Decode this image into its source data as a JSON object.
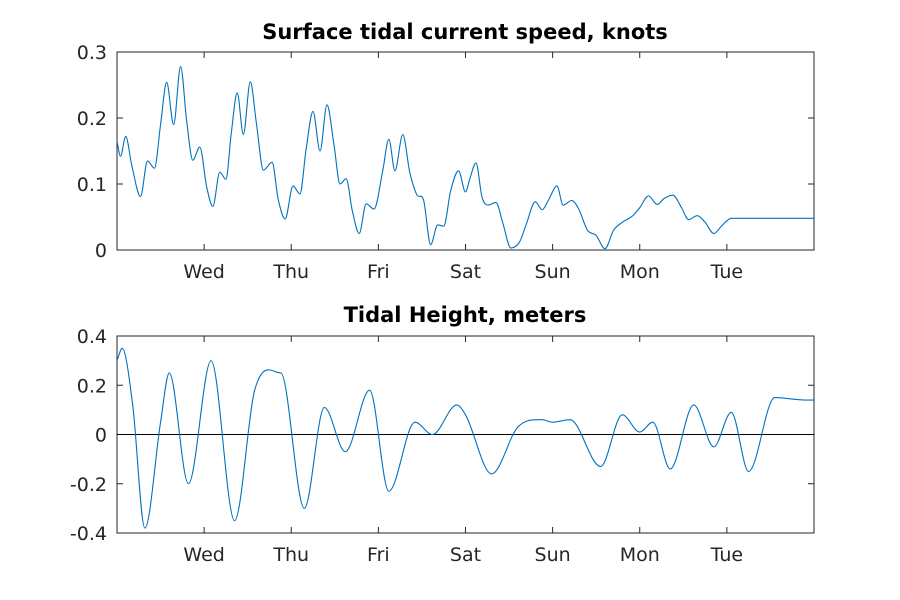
{
  "colors": {
    "series": "#0072bd",
    "axes": "#262626",
    "zero_line": "#000000"
  },
  "chart_data": [
    {
      "type": "line",
      "title": "Surface tidal current speed, knots",
      "xlabel": "",
      "ylabel": "",
      "x_unit": "days",
      "xlim": [
        0,
        8
      ],
      "ylim": [
        0,
        0.3
      ],
      "yticks": [
        "0",
        "0.1",
        "0.2",
        "0.3"
      ],
      "xticks": [
        "Wed",
        "Thu",
        "Fri",
        "Sat",
        "Sun",
        "Mon",
        "Tue"
      ],
      "xtick_positions": [
        1,
        2,
        3,
        4,
        5,
        6,
        7
      ],
      "grid": false,
      "zero_line": false,
      "series": [
        {
          "name": "",
          "x": [
            0,
            0.04,
            0.1,
            0.17,
            0.27,
            0.35,
            0.43,
            0.5,
            0.57,
            0.65,
            0.73,
            0.8,
            0.87,
            0.95,
            1.03,
            1.1,
            1.18,
            1.25,
            1.31,
            1.38,
            1.45,
            1.53,
            1.6,
            1.68,
            1.78,
            1.85,
            1.93,
            2.02,
            2.1,
            2.17,
            2.25,
            2.33,
            2.41,
            2.49,
            2.56,
            2.63,
            2.7,
            2.78,
            2.86,
            2.95,
            3.05,
            3.12,
            3.19,
            3.28,
            3.36,
            3.44,
            3.52,
            3.6,
            3.68,
            3.75,
            3.83,
            3.92,
            4.0,
            4.05,
            4.12,
            4.19,
            4.26,
            4.35,
            4.43,
            4.52,
            4.62,
            4.7,
            4.8,
            4.88,
            4.95,
            5.05,
            5.12,
            5.22,
            5.3,
            5.4,
            5.5,
            5.6,
            5.7,
            5.8,
            5.92,
            6.0,
            6.1,
            6.2,
            6.28,
            6.38,
            6.48,
            6.56,
            6.66,
            6.75,
            6.85,
            6.95,
            7.05,
            7.15,
            7.23,
            7.32,
            7.42,
            7.52,
            7.62,
            7.7,
            7.8,
            7.88,
            8.0
          ],
          "values": [
            0.165,
            0.142,
            0.172,
            0.128,
            0.081,
            0.135,
            0.124,
            0.19,
            0.254,
            0.19,
            0.278,
            0.195,
            0.136,
            0.156,
            0.095,
            0.066,
            0.118,
            0.107,
            0.175,
            0.238,
            0.175,
            0.255,
            0.192,
            0.121,
            0.133,
            0.077,
            0.047,
            0.097,
            0.085,
            0.152,
            0.21,
            0.15,
            0.22,
            0.16,
            0.1,
            0.108,
            0.06,
            0.025,
            0.07,
            0.062,
            0.12,
            0.168,
            0.12,
            0.175,
            0.118,
            0.084,
            0.075,
            0.008,
            0.038,
            0.036,
            0.09,
            0.12,
            0.088,
            0.108,
            0.132,
            0.08,
            0.068,
            0.072,
            0.04,
            0.003,
            0.012,
            0.04,
            0.073,
            0.061,
            0.075,
            0.097,
            0.068,
            0.075,
            0.062,
            0.03,
            0.022,
            0.002,
            0.03,
            0.042,
            0.052,
            0.064,
            0.082,
            0.069,
            0.078,
            0.083,
            0.064,
            0.046,
            0.052,
            0.042,
            0.025,
            0.038,
            0.048,
            0.048,
            0.048,
            0.048,
            0.048,
            0.048,
            0.048,
            0.048,
            0.048,
            0.048,
            0.048
          ]
        }
      ]
    },
    {
      "type": "line",
      "title": "Tidal Height, meters",
      "xlabel": "",
      "ylabel": "",
      "x_unit": "days",
      "xlim": [
        0,
        8
      ],
      "ylim": [
        -0.4,
        0.4
      ],
      "yticks": [
        "-0.4",
        "-0.2",
        "0",
        "0.2",
        "0.4"
      ],
      "xticks": [
        "Wed",
        "Thu",
        "Fri",
        "Sat",
        "Sun",
        "Mon",
        "Tue"
      ],
      "xtick_positions": [
        1,
        2,
        3,
        4,
        5,
        6,
        7
      ],
      "grid": false,
      "zero_line": true,
      "series": [
        {
          "name": "",
          "x": [
            0,
            0.06,
            0.18,
            0.32,
            0.5,
            0.6,
            0.82,
            1.08,
            1.35,
            1.58,
            1.88,
            2.15,
            2.38,
            2.62,
            2.9,
            3.12,
            3.42,
            3.62,
            3.9,
            4.0,
            4.3,
            4.6,
            4.88,
            5.0,
            5.2,
            5.55,
            5.8,
            6.0,
            6.15,
            6.35,
            6.62,
            6.85,
            7.05,
            7.25,
            7.55,
            7.9,
            8.0
          ],
          "values": [
            0.3,
            0.35,
            0.12,
            -0.38,
            0.05,
            0.25,
            -0.2,
            0.3,
            -0.35,
            0.18,
            0.25,
            -0.3,
            0.11,
            -0.07,
            0.18,
            -0.23,
            0.05,
            0.0,
            0.12,
            0.08,
            -0.16,
            0.03,
            0.06,
            0.05,
            0.06,
            -0.13,
            0.08,
            0.01,
            0.05,
            -0.14,
            0.12,
            -0.05,
            0.09,
            -0.15,
            0.15,
            0.14,
            0.14
          ]
        }
      ]
    }
  ]
}
